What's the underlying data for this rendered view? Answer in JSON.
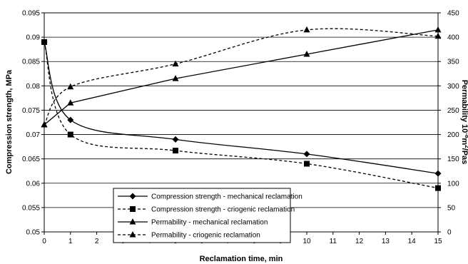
{
  "chart_data": {
    "type": "line",
    "xlabel": "Reclamation time, min",
    "ylabel_left": "Compression strength, MPa",
    "ylabel_right": "Permability 10",
    "ylabel_right_sup1": "-8",
    "ylabel_right_mid": "m",
    "ylabel_right_sup2": "2",
    "ylabel_right_end": "/Pas",
    "xlim": [
      0,
      15
    ],
    "ylim_left": [
      0.05,
      0.095
    ],
    "ylim_right": [
      0,
      450
    ],
    "x_ticks": [
      "0",
      "1",
      "2",
      "3",
      "4",
      "5",
      "6",
      "7",
      "8",
      "9",
      "10",
      "11",
      "12",
      "13",
      "14",
      "15"
    ],
    "y_left_ticks": [
      "0.05",
      "0.055",
      "0.06",
      "0.065",
      "0.07",
      "0.075",
      "0.08",
      "0.085",
      "0.09",
      "0.095"
    ],
    "y_right_ticks": [
      "0",
      "50",
      "100",
      "150",
      "200",
      "250",
      "300",
      "350",
      "400",
      "450"
    ],
    "grid": "horizontal",
    "legend_position": "bottom-left",
    "series": [
      {
        "name": "Compression strength - mechanical reclamation",
        "axis": "left",
        "marker": "diamond",
        "line": "solid",
        "x": [
          0,
          1,
          5,
          10,
          15
        ],
        "y": [
          0.089,
          0.073,
          0.069,
          0.066,
          0.062
        ]
      },
      {
        "name": "Compression strength - criogenic reclamation",
        "axis": "left",
        "marker": "square",
        "line": "dashed",
        "x": [
          0,
          1,
          5,
          10,
          15
        ],
        "y": [
          0.089,
          0.07,
          0.0667,
          0.064,
          0.059
        ]
      },
      {
        "name": "Permability - mechanical reclamation",
        "axis": "right",
        "marker": "triangle",
        "line": "solid",
        "x": [
          0,
          1,
          5,
          10,
          15
        ],
        "y": [
          220,
          265,
          315,
          365,
          415
        ]
      },
      {
        "name": "Permability - criogenic reclamation",
        "axis": "right",
        "marker": "triangle",
        "line": "dashed",
        "x": [
          0,
          1,
          5,
          10,
          15
        ],
        "y": [
          220,
          298,
          345,
          415,
          402
        ]
      }
    ]
  }
}
